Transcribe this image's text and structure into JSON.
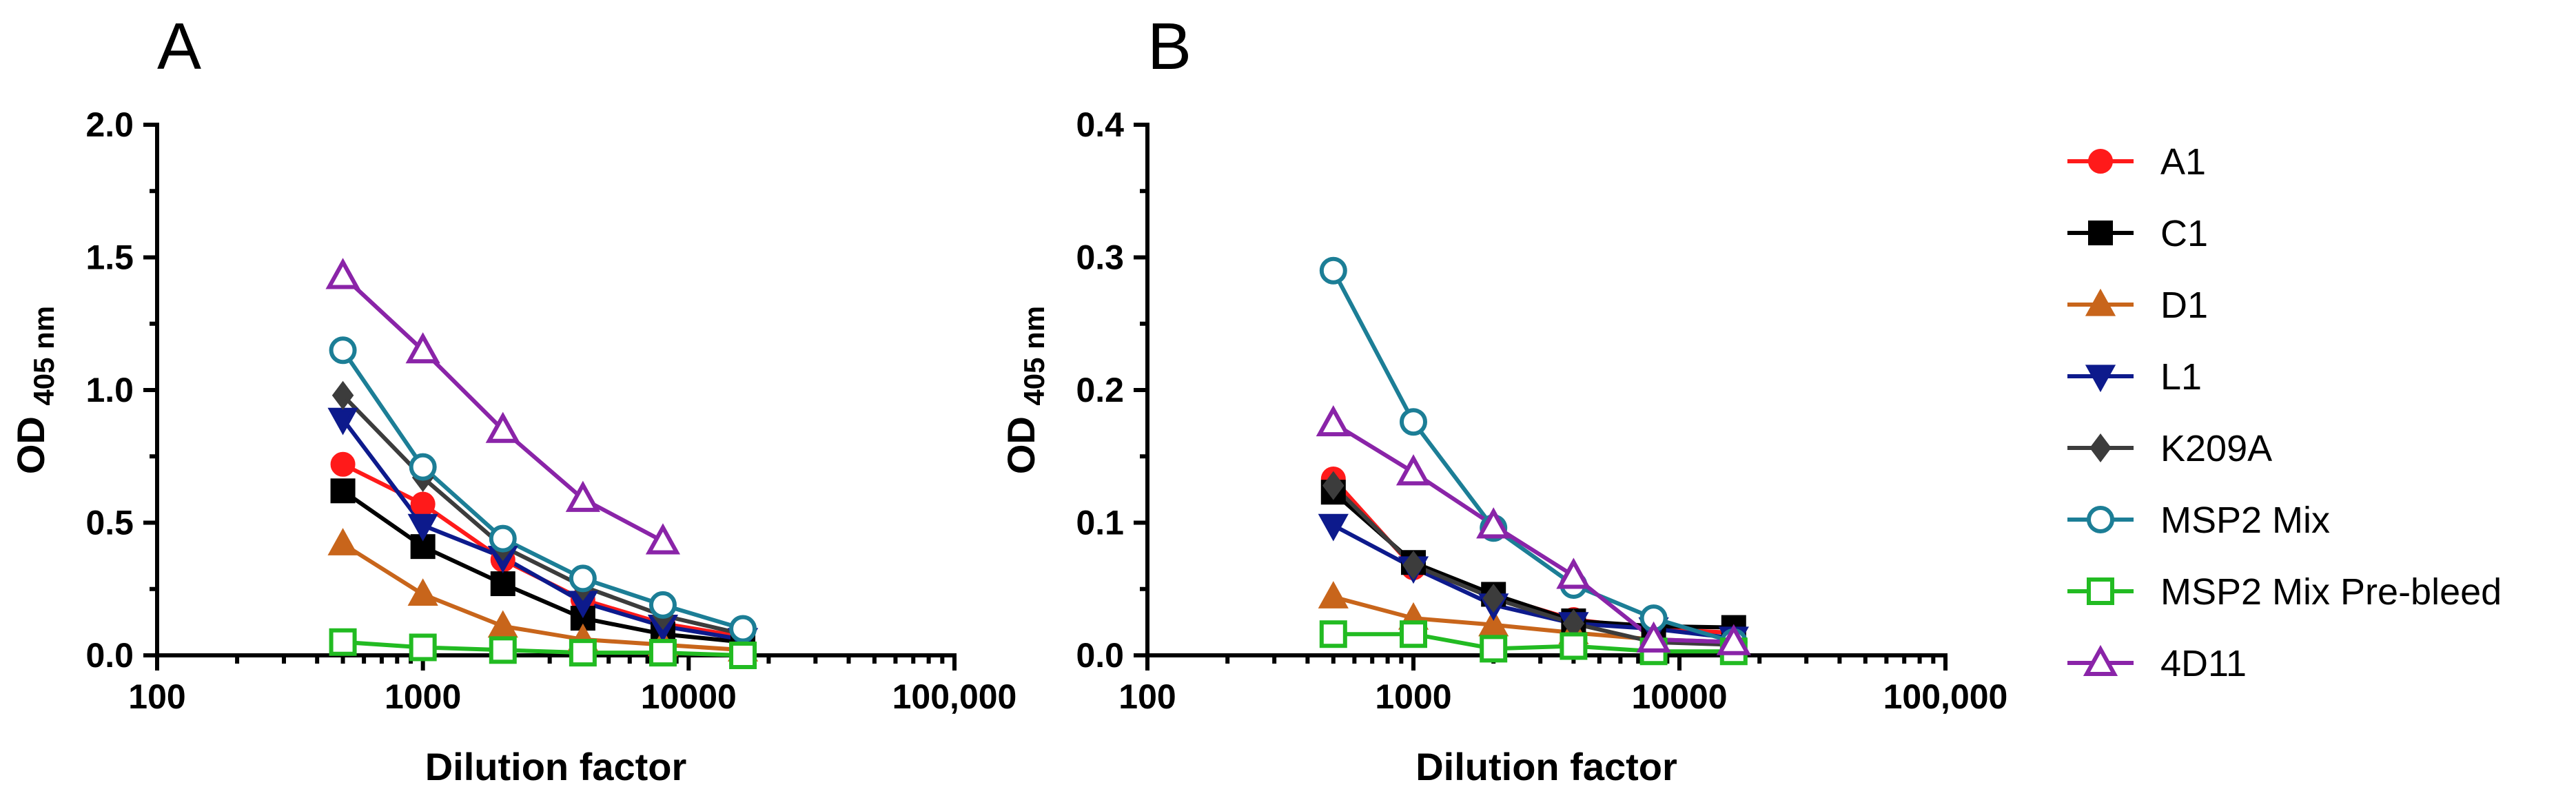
{
  "chart_data": [
    {
      "type": "line",
      "panel": "A",
      "xscale": "log",
      "xlim": [
        100,
        100000
      ],
      "ylim": [
        0,
        2.0
      ],
      "xlabel": "Dilution factor",
      "ylabel_main": "OD",
      "ylabel_sub": "405 nm",
      "x_ticks": [
        {
          "value": 100,
          "label": "100"
        },
        {
          "value": 1000,
          "label": "1000"
        },
        {
          "value": 10000,
          "label": "10000"
        },
        {
          "value": 100000,
          "label": "100,000"
        }
      ],
      "y_ticks": [
        {
          "value": 0,
          "label": "0.0"
        },
        {
          "value": 0.5,
          "label": "0.5"
        },
        {
          "value": 1.0,
          "label": "1.0"
        },
        {
          "value": 1.5,
          "label": "1.5"
        },
        {
          "value": 2.0,
          "label": "2.0"
        }
      ],
      "series": [
        {
          "name": "A1",
          "x": [
            500,
            1000,
            2000,
            4000,
            8000,
            16000
          ],
          "y": [
            0.72,
            0.57,
            0.36,
            0.21,
            0.12,
            0.07
          ]
        },
        {
          "name": "C1",
          "x": [
            500,
            1000,
            2000,
            4000,
            8000,
            16000
          ],
          "y": [
            0.62,
            0.41,
            0.27,
            0.14,
            0.08,
            0.05
          ]
        },
        {
          "name": "D1",
          "x": [
            500,
            1000,
            2000,
            4000,
            8000,
            16000
          ],
          "y": [
            0.42,
            0.23,
            0.11,
            0.06,
            0.04,
            0.02
          ]
        },
        {
          "name": "L1",
          "x": [
            500,
            1000,
            2000,
            4000,
            8000,
            16000
          ],
          "y": [
            0.89,
            0.49,
            0.37,
            0.2,
            0.11,
            0.06
          ]
        },
        {
          "name": "K209A",
          "x": [
            500,
            1000,
            2000,
            4000,
            8000,
            16000
          ],
          "y": [
            0.98,
            0.67,
            0.41,
            0.26,
            0.15,
            0.08
          ]
        },
        {
          "name": "MSP2 Mix",
          "x": [
            500,
            1000,
            2000,
            4000,
            8000,
            16000
          ],
          "y": [
            1.15,
            0.71,
            0.44,
            0.29,
            0.19,
            0.1
          ]
        },
        {
          "name": "MSP2 Mix Pre-bleed",
          "x": [
            500,
            1000,
            2000,
            4000,
            8000,
            16000
          ],
          "y": [
            0.05,
            0.03,
            0.02,
            0.01,
            0.01,
            0.0
          ]
        },
        {
          "name": "4D11",
          "x": [
            500,
            1000,
            2000,
            4000,
            8000
          ],
          "y": [
            1.43,
            1.15,
            0.85,
            0.59,
            0.43
          ]
        }
      ]
    },
    {
      "type": "line",
      "panel": "B",
      "xscale": "log",
      "xlim": [
        100,
        100000
      ],
      "ylim": [
        0,
        0.4
      ],
      "xlabel": "Dilution factor",
      "ylabel_main": "OD",
      "ylabel_sub": "405 nm",
      "x_ticks": [
        {
          "value": 100,
          "label": "100"
        },
        {
          "value": 1000,
          "label": "1000"
        },
        {
          "value": 10000,
          "label": "10000"
        },
        {
          "value": 100000,
          "label": "100,000"
        }
      ],
      "y_ticks": [
        {
          "value": 0,
          "label": "0.0"
        },
        {
          "value": 0.1,
          "label": "0.1"
        },
        {
          "value": 0.2,
          "label": "0.2"
        },
        {
          "value": 0.3,
          "label": "0.3"
        },
        {
          "value": 0.4,
          "label": "0.4"
        }
      ],
      "series": [
        {
          "name": "A1",
          "x": [
            500,
            1000,
            2000,
            4000,
            8000,
            16000
          ],
          "y": [
            0.133,
            0.066,
            0.045,
            0.027,
            0.02,
            0.017
          ]
        },
        {
          "name": "C1",
          "x": [
            500,
            1000,
            2000,
            4000,
            8000,
            16000
          ],
          "y": [
            0.123,
            0.07,
            0.046,
            0.026,
            0.022,
            0.021
          ]
        },
        {
          "name": "D1",
          "x": [
            500,
            1000,
            2000,
            4000,
            8000,
            16000
          ],
          "y": [
            0.044,
            0.028,
            0.023,
            0.017,
            0.012,
            0.01
          ]
        },
        {
          "name": "L1",
          "x": [
            500,
            1000,
            2000,
            4000,
            8000,
            16000
          ],
          "y": [
            0.098,
            0.066,
            0.038,
            0.024,
            0.02,
            0.013
          ]
        },
        {
          "name": "K209A",
          "x": [
            500,
            1000,
            2000,
            4000,
            8000,
            16000
          ],
          "y": [
            0.128,
            0.068,
            0.043,
            0.024,
            0.01,
            0.008
          ]
        },
        {
          "name": "MSP2 Mix",
          "x": [
            500,
            1000,
            2000,
            4000,
            8000,
            16000
          ],
          "y": [
            0.29,
            0.176,
            0.096,
            0.053,
            0.028,
            0.01
          ]
        },
        {
          "name": "MSP2 Mix Pre-bleed",
          "x": [
            500,
            1000,
            2000,
            4000,
            8000,
            16000
          ],
          "y": [
            0.016,
            0.016,
            0.005,
            0.007,
            0.003,
            0.003
          ]
        },
        {
          "name": "4D11",
          "x": [
            500,
            1000,
            2000,
            4000,
            8000,
            16000
          ],
          "y": [
            0.175,
            0.138,
            0.098,
            0.06,
            0.012,
            0.01
          ]
        }
      ]
    }
  ],
  "legend": {
    "placement": "right",
    "items": [
      {
        "name": "A1",
        "color": "#ff1a1a",
        "marker": "circle-filled"
      },
      {
        "name": "C1",
        "color": "#000000",
        "marker": "square-filled"
      },
      {
        "name": "D1",
        "color": "#c8651b",
        "marker": "triangle-up-filled"
      },
      {
        "name": "L1",
        "color": "#0d1a8c",
        "marker": "triangle-down-filled"
      },
      {
        "name": "K209A",
        "color": "#3c3c3c",
        "marker": "diamond-filled"
      },
      {
        "name": "MSP2 Mix",
        "color": "#1c7e96",
        "marker": "circle-open"
      },
      {
        "name": "MSP2 Mix Pre-bleed",
        "color": "#22bb22",
        "marker": "square-open"
      },
      {
        "name": "4D11",
        "color": "#8a24a8",
        "marker": "triangle-up-open"
      }
    ]
  }
}
